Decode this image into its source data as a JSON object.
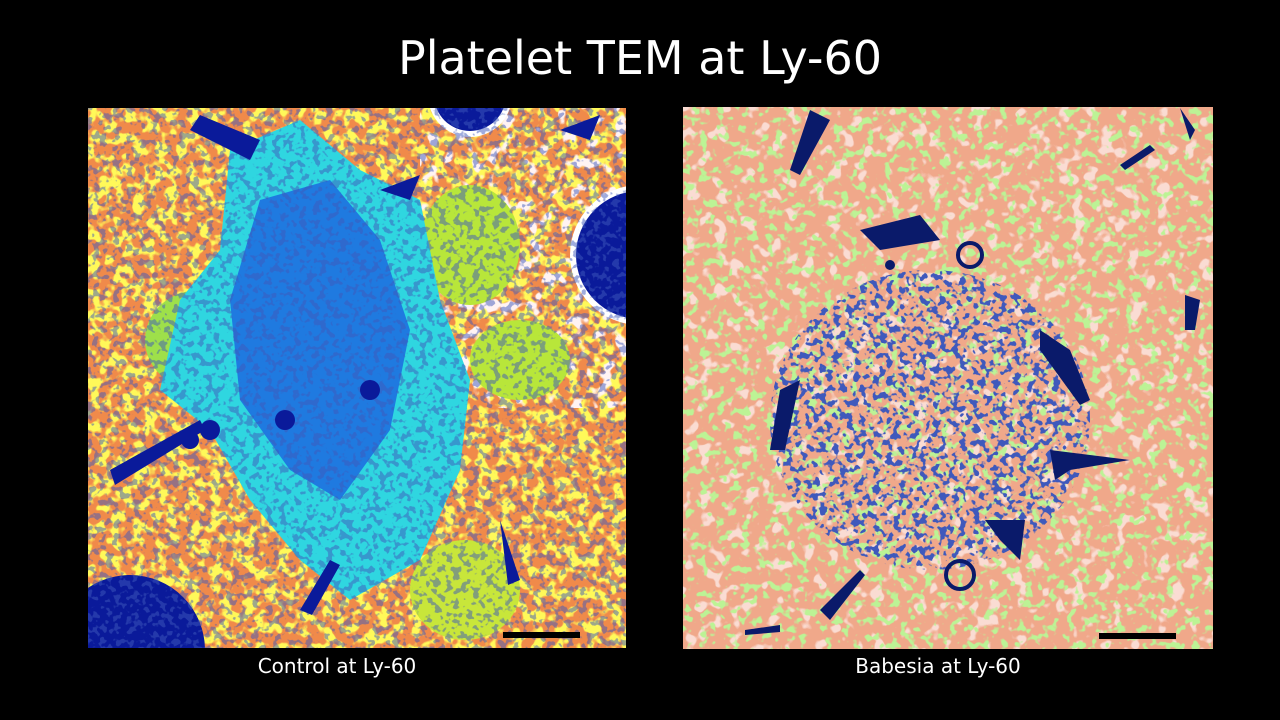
{
  "title": "Platelet TEM at Ly-60",
  "panels": [
    {
      "caption": "Control at Ly-60"
    },
    {
      "caption": "Babesia at Ly-60"
    }
  ]
}
